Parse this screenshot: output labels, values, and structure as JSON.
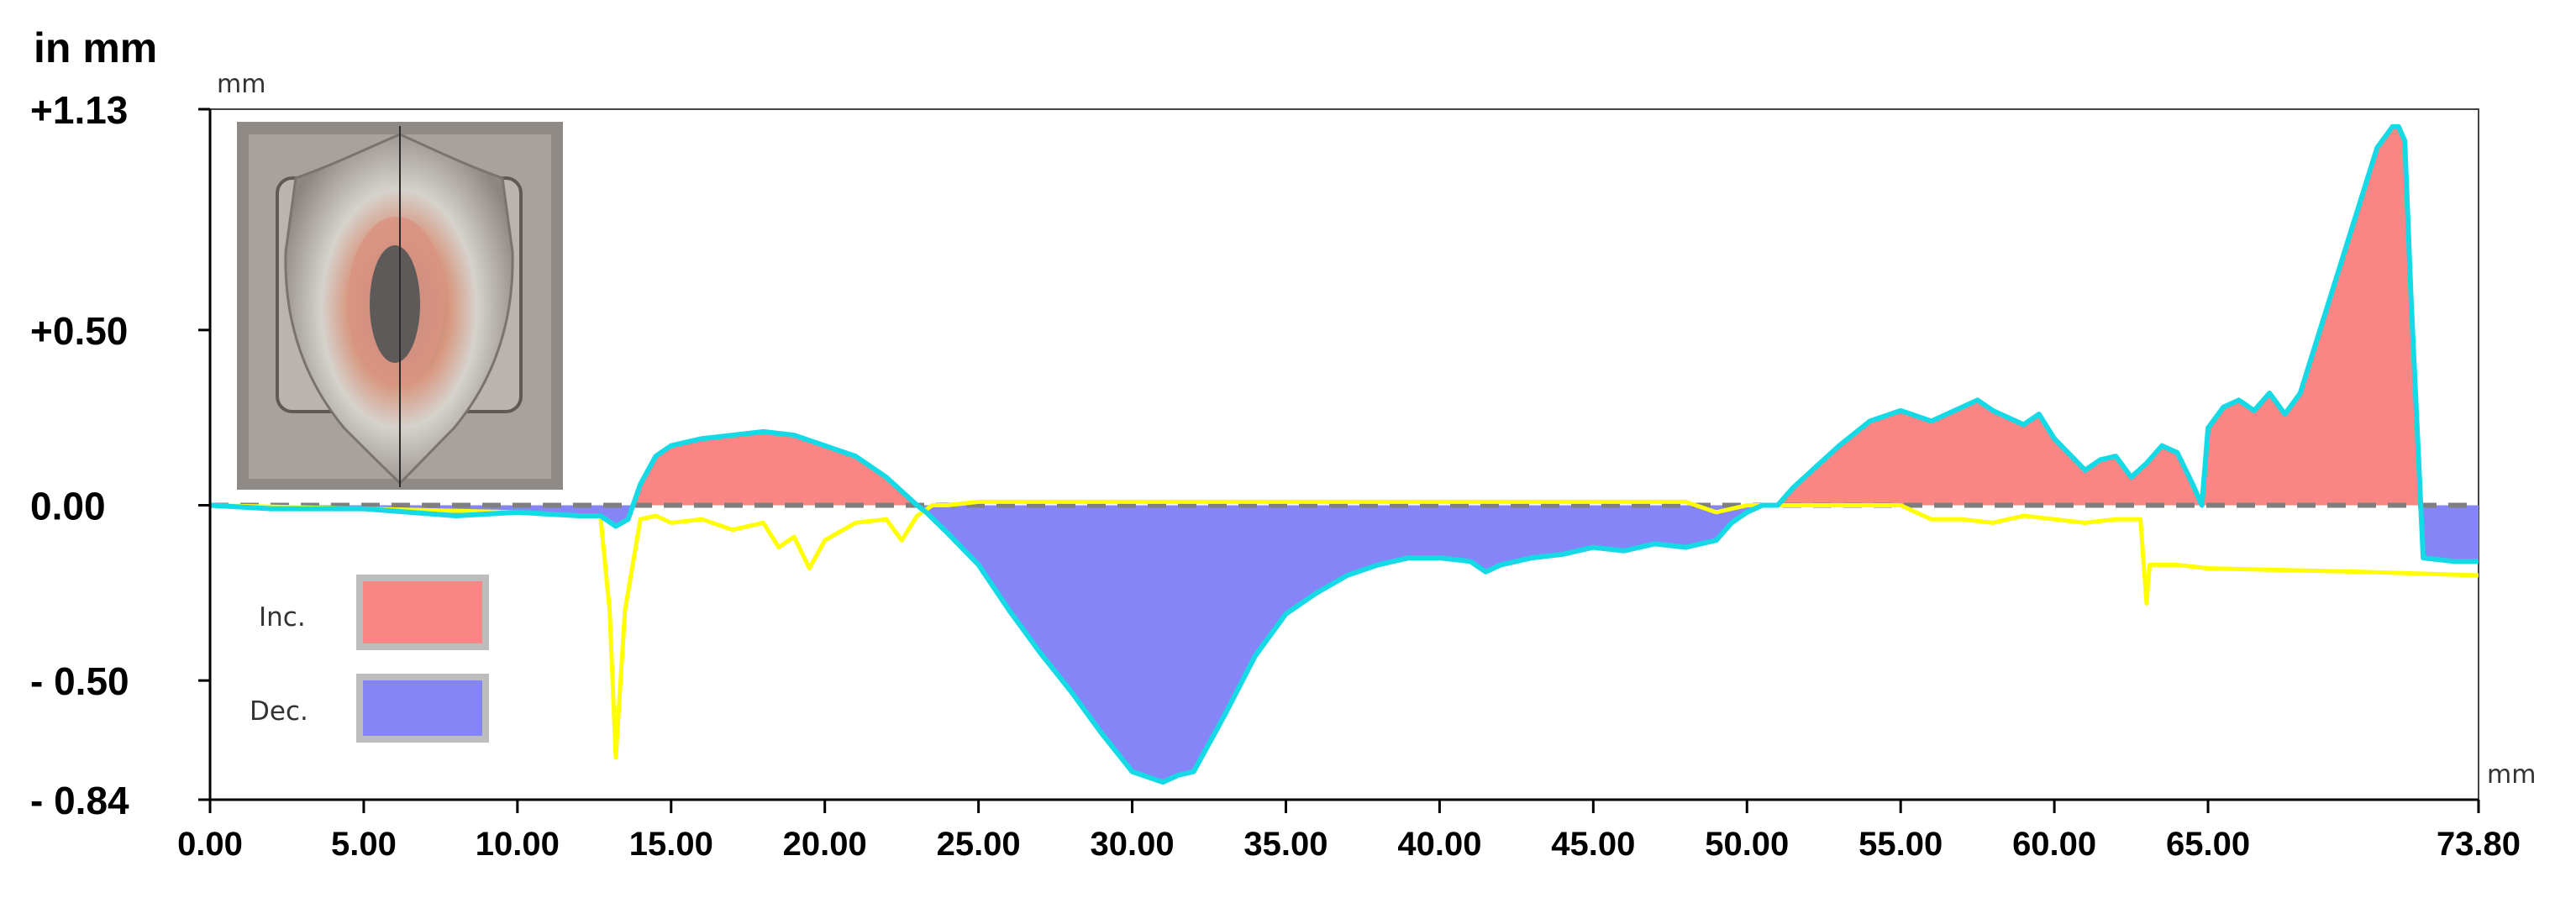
{
  "chart_data": {
    "type": "area",
    "y_title": "in mm",
    "y_unit": "mm",
    "x_unit": "mm",
    "xlim": [
      0,
      73.8
    ],
    "ylim": [
      -0.84,
      1.13
    ],
    "x_ticks": [
      "0.00",
      "5.00",
      "10.00",
      "15.00",
      "20.00",
      "25.00",
      "30.00",
      "35.00",
      "40.00",
      "45.00",
      "50.00",
      "55.00",
      "60.00",
      "65.00",
      "73.80"
    ],
    "x_tick_values": [
      0,
      5,
      10,
      15,
      20,
      25,
      30,
      35,
      40,
      45,
      50,
      55,
      60,
      65,
      73.8
    ],
    "y_ticks": [
      "+1.13",
      "+0.50",
      "0.00",
      "- 0.50",
      "- 0.84"
    ],
    "y_tick_values": [
      1.13,
      0.5,
      0,
      -0.5,
      -0.84
    ],
    "grid": false,
    "legend": {
      "position": "bottom-left",
      "entries": [
        {
          "label": "Inc.",
          "color": "#f98585"
        },
        {
          "label": "Dec.",
          "color": "#8585f8"
        }
      ]
    },
    "colors": {
      "increase_fill": "#f98585",
      "decrease_fill": "#8585f8",
      "outer_profile": "#16d9e6",
      "inner_profile": "#ffff00",
      "zero_line": "#7f7f7f"
    },
    "inset_image": "worn-specimen-photo",
    "series": [
      {
        "role": "outer-profile",
        "x": [
          0,
          2,
          5,
          8,
          10,
          12,
          12.7,
          13.2,
          13.6,
          14,
          14.5,
          15,
          16,
          17,
          18,
          19,
          20,
          21,
          22,
          22.5,
          23,
          23.3,
          24,
          25,
          26,
          27,
          28,
          29,
          30,
          31,
          31.5,
          32,
          33,
          34,
          35,
          36,
          37,
          38,
          39,
          40,
          41,
          41.5,
          42,
          43,
          44,
          45,
          46,
          47,
          48,
          49,
          49.5,
          50,
          50.5,
          51,
          51.5,
          52,
          53,
          54,
          55,
          56,
          57,
          57.5,
          58,
          59,
          59.5,
          60,
          61,
          61.5,
          62,
          62.5,
          63,
          63.5,
          64,
          64.5,
          64.8,
          65,
          65.5,
          66,
          66.5,
          67,
          67.5,
          68,
          69,
          70,
          70.5,
          71,
          71.2,
          71.4,
          71.6,
          72,
          73,
          73.8
        ],
        "y": [
          0,
          -0.01,
          -0.01,
          -0.03,
          -0.02,
          -0.03,
          -0.03,
          -0.06,
          -0.04,
          0.06,
          0.14,
          0.17,
          0.19,
          0.2,
          0.21,
          0.2,
          0.17,
          0.14,
          0.08,
          0.04,
          0,
          -0.02,
          -0.08,
          -0.17,
          -0.3,
          -0.42,
          -0.53,
          -0.65,
          -0.76,
          -0.79,
          -0.77,
          -0.76,
          -0.6,
          -0.43,
          -0.31,
          -0.25,
          -0.2,
          -0.17,
          -0.15,
          -0.15,
          -0.16,
          -0.19,
          -0.17,
          -0.15,
          -0.14,
          -0.12,
          -0.13,
          -0.11,
          -0.12,
          -0.1,
          -0.05,
          -0.02,
          0,
          0,
          0.05,
          0.09,
          0.17,
          0.24,
          0.27,
          0.24,
          0.28,
          0.3,
          0.27,
          0.23,
          0.26,
          0.19,
          0.1,
          0.13,
          0.14,
          0.08,
          0.12,
          0.17,
          0.15,
          0.06,
          0.0,
          0.22,
          0.28,
          0.3,
          0.27,
          0.32,
          0.26,
          0.32,
          0.6,
          0.88,
          1.02,
          1.08,
          1.08,
          1.04,
          0.6,
          -0.15,
          -0.16,
          -0.16
        ]
      },
      {
        "role": "inner-profile",
        "x": [
          0,
          5,
          10,
          12,
          12.7,
          13,
          13.2,
          13.5,
          14,
          14.5,
          15,
          16,
          17,
          18,
          18.5,
          19,
          19.5,
          20,
          21,
          22,
          22.5,
          23,
          23.5,
          24,
          25,
          30,
          35,
          40,
          45,
          48,
          49,
          50,
          50.5,
          51,
          52,
          55,
          56,
          57,
          58,
          59,
          60,
          61,
          62,
          62.8,
          63,
          63.1,
          64,
          65,
          70,
          73.8
        ],
        "y": [
          0,
          -0.01,
          -0.02,
          -0.03,
          -0.03,
          -0.3,
          -0.72,
          -0.3,
          -0.04,
          -0.03,
          -0.05,
          -0.04,
          -0.07,
          -0.05,
          -0.12,
          -0.09,
          -0.18,
          -0.1,
          -0.05,
          -0.04,
          -0.1,
          -0.03,
          0,
          0,
          0.01,
          0.01,
          0.01,
          0.01,
          0.01,
          0.01,
          -0.02,
          0,
          0,
          0,
          0,
          0,
          -0.04,
          -0.04,
          -0.05,
          -0.03,
          -0.04,
          -0.05,
          -0.04,
          -0.04,
          -0.28,
          -0.17,
          -0.17,
          -0.18,
          -0.19,
          -0.2
        ]
      }
    ]
  }
}
